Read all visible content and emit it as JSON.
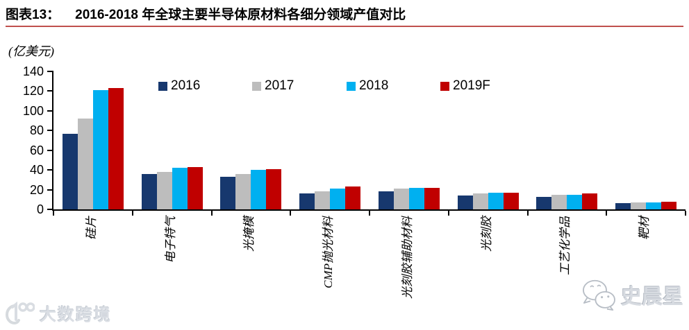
{
  "header": {
    "tag": "图表13：",
    "title": "2016-2018 年全球主要半导体原材料各细分领域产值对比"
  },
  "chart_data": {
    "type": "bar",
    "title": "2016-2018 年全球主要半导体原材料各细分领域产值对比",
    "unit_label": "(亿美元)",
    "categories": [
      "硅片",
      "电子特气",
      "光掩模",
      "CMP抛光材料",
      "光刻胶辅助材料",
      "光刻胶",
      "工艺化学品",
      "靶材"
    ],
    "series": [
      {
        "name": "2016",
        "color": "#17386E",
        "values": [
          77,
          36,
          33,
          16,
          18,
          14,
          13,
          6
        ]
      },
      {
        "name": "2017",
        "color": "#BDBDBD",
        "values": [
          92,
          38,
          36,
          18,
          21,
          16,
          15,
          7
        ]
      },
      {
        "name": "2018",
        "color": "#00B0F0",
        "values": [
          121,
          42,
          40,
          21,
          22,
          17,
          15,
          7
        ]
      },
      {
        "name": "2019F",
        "color": "#C00000",
        "values": [
          123,
          43,
          41,
          23,
          22,
          17,
          16,
          8
        ]
      }
    ],
    "ylim": [
      0,
      140
    ],
    "yticks": [
      0,
      20,
      40,
      60,
      80,
      100,
      120,
      140
    ],
    "legend_position": "top-center",
    "grid": false
  },
  "watermarks": {
    "bottom_left": "大数跨境",
    "bottom_right": "史晨星"
  },
  "colors": {
    "accent_rule": "#C0504D",
    "axis": "#000000"
  }
}
